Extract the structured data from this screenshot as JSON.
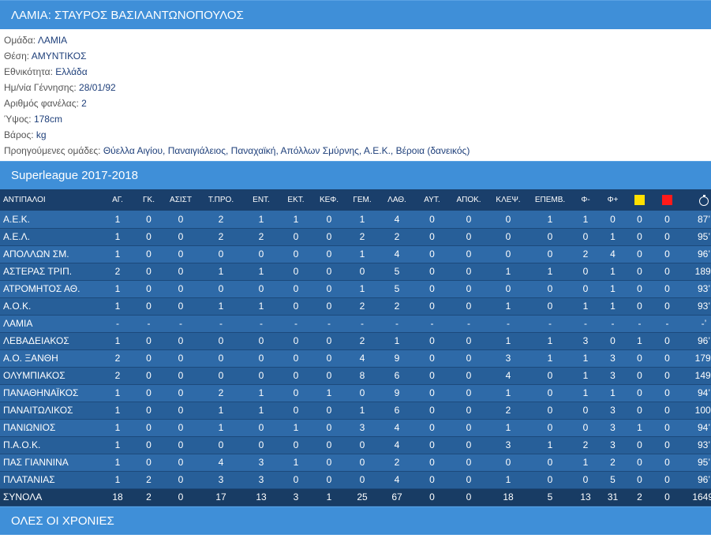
{
  "player_title": "ΛΑΜΙΑ: ΣΤΑΥΡΟΣ ΒΑΣΙΛΑΝΤΩΝΟΠΟΥΛΟΣ",
  "info": [
    {
      "label": "Ομάδα: ",
      "value": "ΛΑΜΙΑ"
    },
    {
      "label": "Θέση: ",
      "value": "ΑΜΥΝΤΙΚΟΣ"
    },
    {
      "label": "Εθνικότητα: ",
      "value": "Ελλάδα"
    },
    {
      "label": "Ημ/νία Γέννησης: ",
      "value": "28/01/92"
    },
    {
      "label": "Αριθμός φανέλας: ",
      "value": "2"
    },
    {
      "label": "Ύψος: ",
      "value": "178cm"
    },
    {
      "label": "Βάρος: ",
      "value": "kg"
    },
    {
      "label": "Προηγούμενες ομάδες: ",
      "value": "Θύελλα Αιγίου, Παναιγιάλειος, Παναχαϊκή, Απόλλων Σμύρνης, Α.Ε.Κ., Βέροια (δανεικός)"
    }
  ],
  "season_title": "Superleague 2017-2018",
  "columns": [
    "ΑΝΤΙΠΑΛΟΙ",
    "ΑΓ.",
    "ΓΚ.",
    "ΑΣΙΣΤ",
    "Τ.ΠΡΟ.",
    "ΕΝΤ.",
    "ΕΚΤ.",
    "ΚΕΦ.",
    "ΓΕΜ.",
    "ΛΑΘ.",
    "ΑΥΤ.",
    "ΑΠΟΚ.",
    "ΚΛΕΨ.",
    "ΕΠΕΜΒ.",
    "Φ-",
    "Φ+"
  ],
  "icons": {
    "yellow_card": "yellow-card-icon",
    "red_card": "red-card-icon",
    "minutes": "stopwatch-icon"
  },
  "colors": {
    "header_bar": "#3f8fd8",
    "table_head": "#1a3f6b",
    "row_a": "#2e6aa8",
    "row_b": "#275f99",
    "totals": "#183c64",
    "yellow": "#ffe000",
    "red": "#ff1a1a"
  },
  "rows": [
    [
      "Α.Ε.Κ.",
      "1",
      "0",
      "0",
      "2",
      "1",
      "1",
      "0",
      "1",
      "4",
      "0",
      "0",
      "0",
      "1",
      "1",
      "0",
      "0",
      "0",
      "87’"
    ],
    [
      "Α.Ε.Λ.",
      "1",
      "0",
      "0",
      "2",
      "2",
      "0",
      "0",
      "2",
      "2",
      "0",
      "0",
      "0",
      "0",
      "0",
      "1",
      "0",
      "0",
      "95’"
    ],
    [
      "ΑΠΟΛΛΩΝ ΣΜ.",
      "1",
      "0",
      "0",
      "0",
      "0",
      "0",
      "0",
      "1",
      "4",
      "0",
      "0",
      "0",
      "0",
      "2",
      "4",
      "0",
      "0",
      "96’"
    ],
    [
      "ΑΣΤΕΡΑΣ ΤΡΙΠ.",
      "2",
      "0",
      "0",
      "1",
      "1",
      "0",
      "0",
      "0",
      "5",
      "0",
      "0",
      "1",
      "1",
      "0",
      "1",
      "0",
      "0",
      "189’"
    ],
    [
      "ΑΤΡΟΜΗΤΟΣ ΑΘ.",
      "1",
      "0",
      "0",
      "0",
      "0",
      "0",
      "0",
      "1",
      "5",
      "0",
      "0",
      "0",
      "0",
      "0",
      "1",
      "0",
      "0",
      "93’"
    ],
    [
      "Α.Ο.Κ.",
      "1",
      "0",
      "0",
      "1",
      "1",
      "0",
      "0",
      "2",
      "2",
      "0",
      "0",
      "1",
      "0",
      "1",
      "1",
      "0",
      "0",
      "93’"
    ],
    [
      "ΛΑΜΙΑ",
      "-",
      "-",
      "-",
      "-",
      "-",
      "-",
      "-",
      "-",
      "-",
      "-",
      "-",
      "-",
      "-",
      "-",
      "-",
      "-",
      "-",
      "-’"
    ],
    [
      "ΛΕΒΑΔΕΙΑΚΟΣ",
      "1",
      "0",
      "0",
      "0",
      "0",
      "0",
      "0",
      "2",
      "1",
      "0",
      "0",
      "1",
      "1",
      "3",
      "0",
      "1",
      "0",
      "96’"
    ],
    [
      "Α.Ο. ΞΑΝΘΗ",
      "2",
      "0",
      "0",
      "0",
      "0",
      "0",
      "0",
      "4",
      "9",
      "0",
      "0",
      "3",
      "1",
      "1",
      "3",
      "0",
      "0",
      "179’"
    ],
    [
      "ΟΛΥΜΠΙΑΚΟΣ",
      "2",
      "0",
      "0",
      "0",
      "0",
      "0",
      "0",
      "8",
      "6",
      "0",
      "0",
      "4",
      "0",
      "1",
      "3",
      "0",
      "0",
      "149’"
    ],
    [
      "ΠΑΝΑΘΗΝΑΪΚΟΣ",
      "1",
      "0",
      "0",
      "2",
      "1",
      "0",
      "1",
      "0",
      "9",
      "0",
      "0",
      "1",
      "0",
      "1",
      "1",
      "0",
      "0",
      "94’"
    ],
    [
      "ΠΑΝΑΙΤΩΛΙΚΟΣ",
      "1",
      "0",
      "0",
      "1",
      "1",
      "0",
      "0",
      "1",
      "6",
      "0",
      "0",
      "2",
      "0",
      "0",
      "3",
      "0",
      "0",
      "100’"
    ],
    [
      "ΠΑΝΙΩΝΙΟΣ",
      "1",
      "0",
      "0",
      "1",
      "0",
      "1",
      "0",
      "3",
      "4",
      "0",
      "0",
      "1",
      "0",
      "0",
      "3",
      "1",
      "0",
      "94’"
    ],
    [
      "Π.Α.Ο.Κ.",
      "1",
      "0",
      "0",
      "0",
      "0",
      "0",
      "0",
      "0",
      "4",
      "0",
      "0",
      "3",
      "1",
      "2",
      "3",
      "0",
      "0",
      "93’"
    ],
    [
      "ΠΑΣ ΓΙΑΝΝΙΝΑ",
      "1",
      "0",
      "0",
      "4",
      "3",
      "1",
      "0",
      "0",
      "2",
      "0",
      "0",
      "0",
      "0",
      "1",
      "2",
      "0",
      "0",
      "95’"
    ],
    [
      "ΠΛΑΤΑΝΙΑΣ",
      "1",
      "2",
      "0",
      "3",
      "3",
      "0",
      "0",
      "0",
      "4",
      "0",
      "0",
      "1",
      "0",
      "0",
      "5",
      "0",
      "0",
      "96’"
    ]
  ],
  "totals": [
    "ΣΥΝΟΛΑ",
    "18",
    "2",
    "0",
    "17",
    "13",
    "3",
    "1",
    "25",
    "67",
    "0",
    "0",
    "18",
    "5",
    "13",
    "31",
    "2",
    "0",
    "1649’"
  ],
  "all_years_title": "ΟΛΕΣ ΟΙ ΧΡΟΝΙΕΣ"
}
